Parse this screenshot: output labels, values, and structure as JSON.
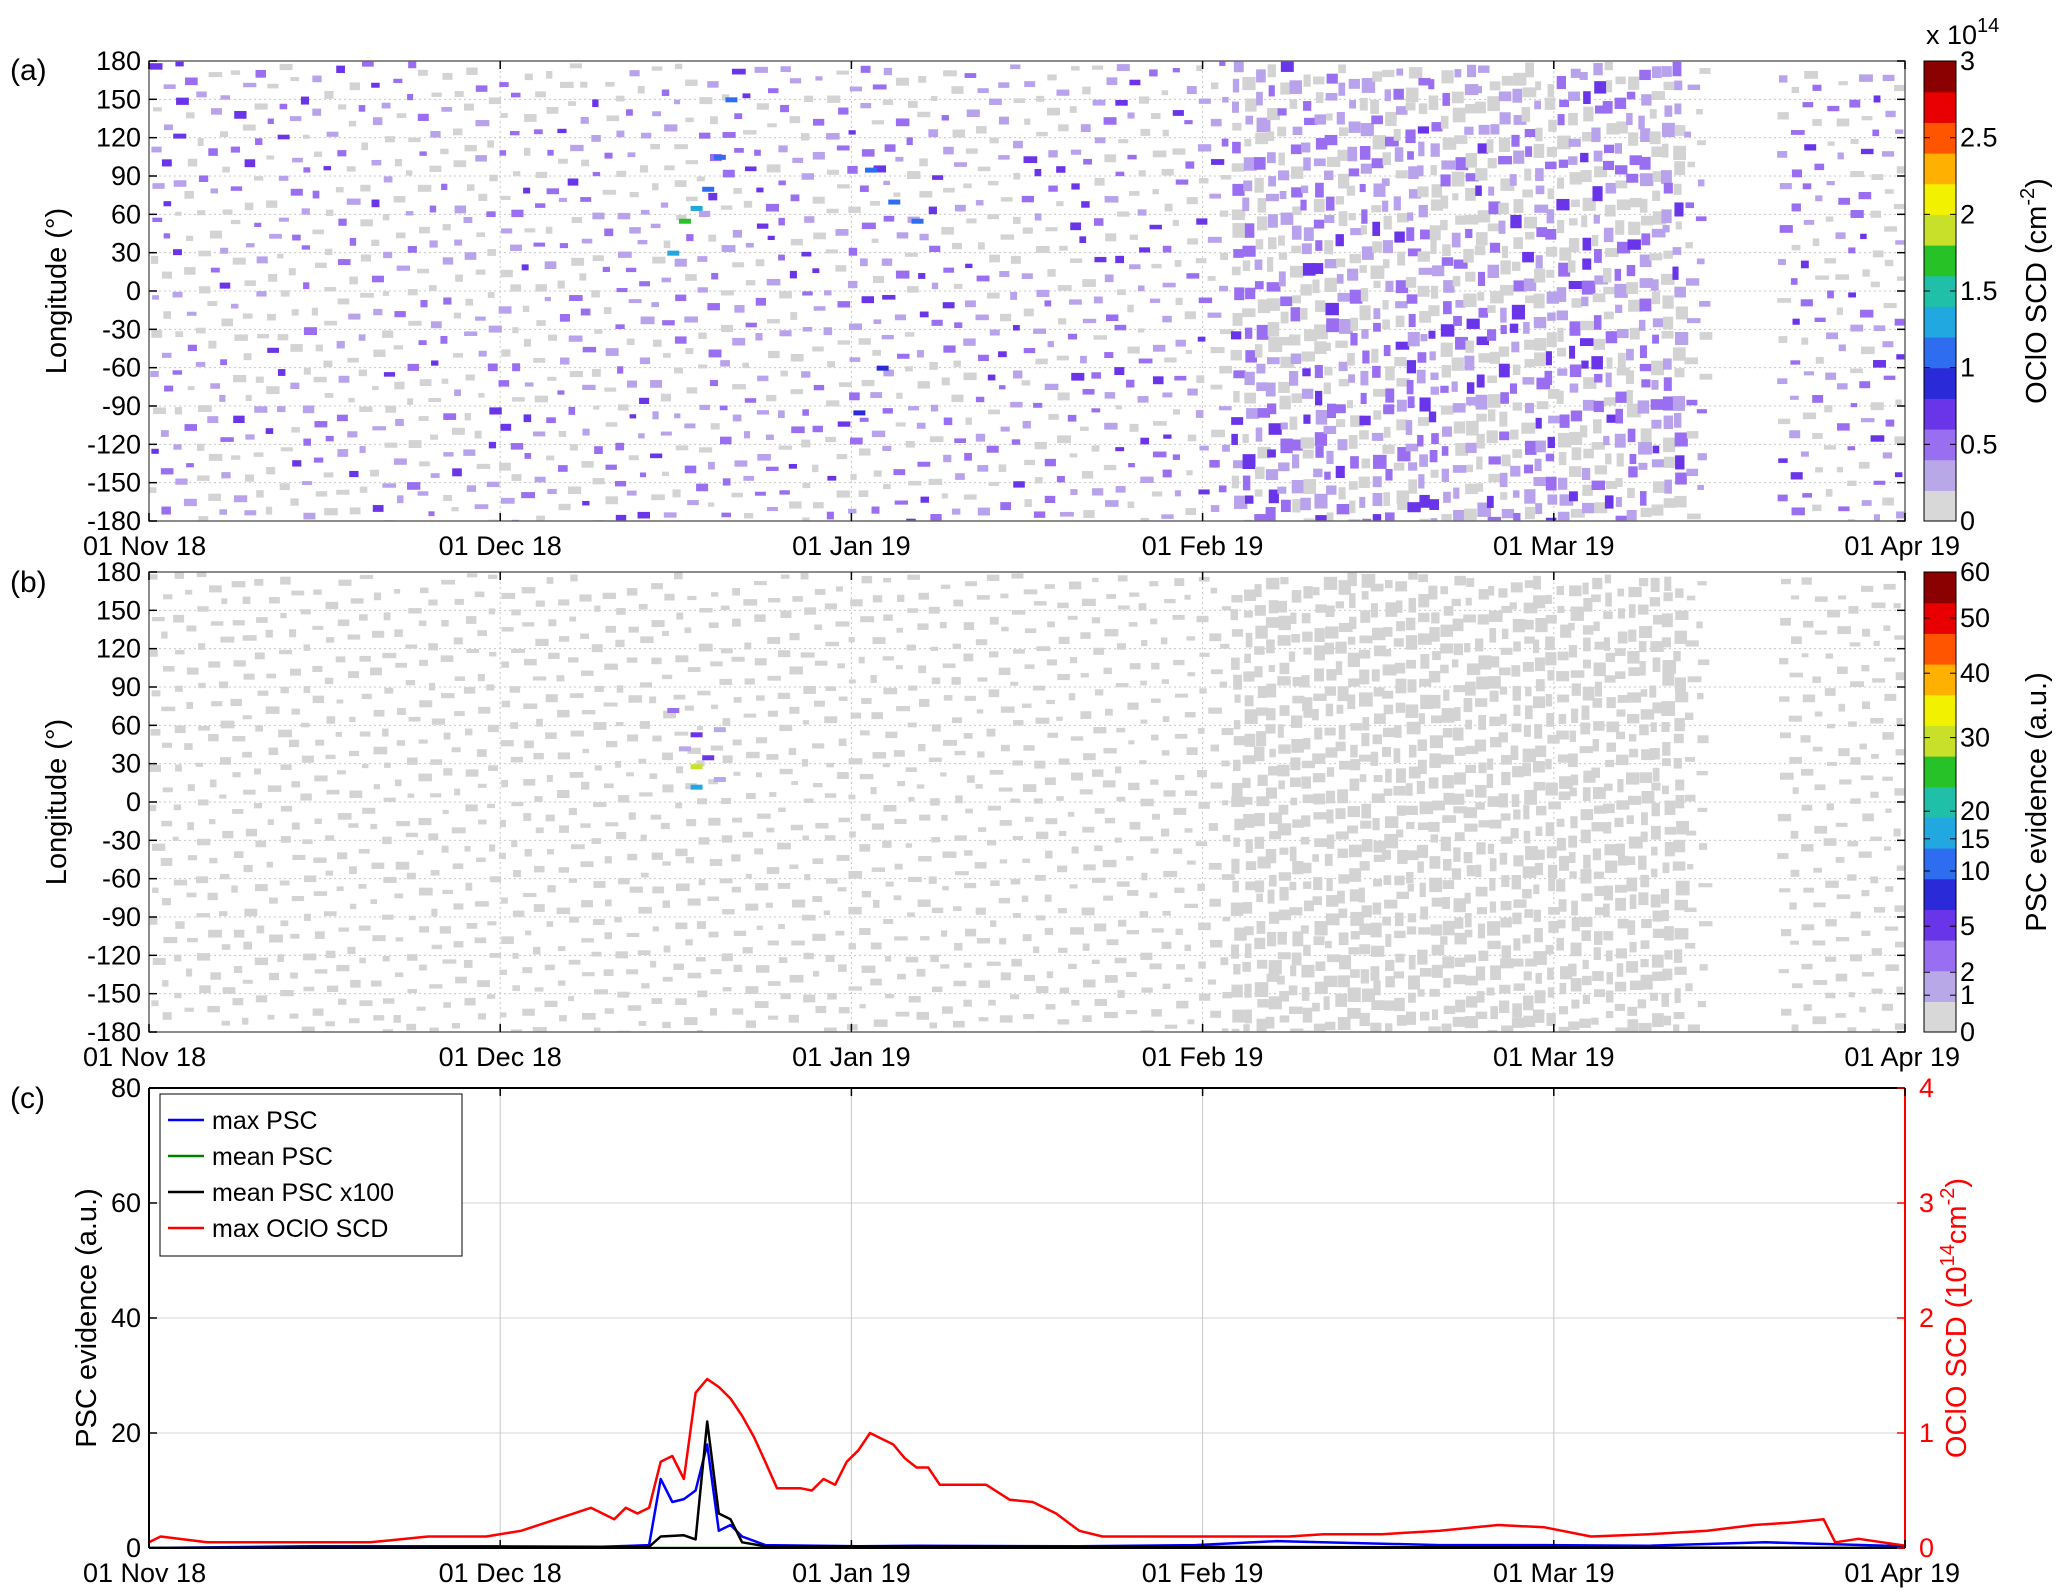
{
  "chart_data": [
    {
      "type": "heatmap",
      "panel_label": "(a)",
      "ylabel": "Longitude (°)",
      "ylim": [
        -180,
        180
      ],
      "yticks": [
        180,
        150,
        120,
        90,
        60,
        30,
        0,
        -30,
        -60,
        -90,
        -120,
        -150,
        -180
      ],
      "xlim": [
        "2018-11-01",
        "2019-04-01"
      ],
      "xticks": [
        "01 Nov 18",
        "01 Dec 18",
        "01 Jan 19",
        "01 Feb 19",
        "01 Mar 19",
        "01 Apr 19"
      ],
      "colorbar": {
        "label": "OClO SCD (cm",
        "label_sup": "-2",
        "label_end": ")",
        "exponent_base": "x 10",
        "exponent": "14",
        "ticks": [
          "0",
          "0.5",
          "1",
          "1.5",
          "2",
          "2.5",
          "3"
        ],
        "range": [
          0,
          3
        ],
        "colormap": [
          "#d8d8d8",
          "#b8a8e8",
          "#9a6ef0",
          "#6a35e8",
          "#2a2ad8",
          "#2e6cf0",
          "#22a8e0",
          "#1fbfa8",
          "#27c227",
          "#c8e02a",
          "#f2f200",
          "#ffb000",
          "#ff5500",
          "#e80000",
          "#8b0000"
        ]
      },
      "grid": true,
      "notable_values": [
        {
          "date": "2018-12-16",
          "lon": 30,
          "value": 1.3
        },
        {
          "date": "2018-12-17",
          "lon": 55,
          "value": 1.6
        },
        {
          "date": "2018-12-18",
          "lon": 65,
          "value": 1.4
        },
        {
          "date": "2018-12-19",
          "lon": 80,
          "value": 1.1
        },
        {
          "date": "2018-12-20",
          "lon": 105,
          "value": 1.0
        },
        {
          "date": "2018-12-21",
          "lon": 150,
          "value": 1.1
        },
        {
          "date": "2019-01-02",
          "lon": 95,
          "value": 1.1
        },
        {
          "date": "2019-01-04",
          "lon": 70,
          "value": 1.2
        },
        {
          "date": "2019-01-06",
          "lon": 55,
          "value": 1.0
        },
        {
          "date": "2019-01-01",
          "lon": -95,
          "value": 0.9
        },
        {
          "date": "2019-01-03",
          "lon": -60,
          "value": 0.9
        }
      ]
    },
    {
      "type": "heatmap",
      "panel_label": "(b)",
      "ylabel": "Longitude (°)",
      "ylim": [
        -180,
        180
      ],
      "yticks": [
        180,
        150,
        120,
        90,
        60,
        30,
        0,
        -30,
        -60,
        -90,
        -120,
        -150,
        -180
      ],
      "xlim": [
        "2018-11-01",
        "2019-04-01"
      ],
      "xticks": [
        "01 Nov 18",
        "01 Dec 18",
        "01 Jan 19",
        "01 Feb 19",
        "01 Mar 19",
        "01 Apr 19"
      ],
      "colorbar": {
        "label": "PSC evidence (a.u.)",
        "ticks": [
          "0",
          "1",
          "2",
          "5",
          "10",
          "15",
          "20",
          "30",
          "40",
          "50",
          "60"
        ],
        "range": [
          0,
          60
        ],
        "colormap": [
          "#d8d8d8",
          "#b8a8e8",
          "#9a6ef0",
          "#6a35e8",
          "#2a2ad8",
          "#2e6cf0",
          "#22a8e0",
          "#1fbfa8",
          "#27c227",
          "#c8e02a",
          "#f2f200",
          "#ffb000",
          "#ff5500",
          "#e80000",
          "#8b0000"
        ]
      },
      "grid": true,
      "notable_values": [
        {
          "date": "2018-12-16",
          "lon": 72,
          "value": 3
        },
        {
          "date": "2018-12-17",
          "lon": 42,
          "value": 2
        },
        {
          "date": "2018-12-18",
          "lon": 53,
          "value": 5
        },
        {
          "date": "2018-12-18",
          "lon": 28,
          "value": 12
        },
        {
          "date": "2018-12-18",
          "lon": 12,
          "value": 8
        },
        {
          "date": "2018-12-19",
          "lon": 35,
          "value": 4
        },
        {
          "date": "2018-12-20",
          "lon": 57,
          "value": 2
        },
        {
          "date": "2018-12-20",
          "lon": 18,
          "value": 2
        }
      ]
    },
    {
      "type": "line",
      "panel_label": "(c)",
      "ylabel": "PSC evidence (a.u.)",
      "ylim": [
        0,
        80
      ],
      "yticks": [
        0,
        20,
        40,
        60,
        80
      ],
      "y2label": "OClO SCD (10",
      "y2label_sup1": "14",
      "y2label_mid": "cm",
      "y2label_sup2": "-2",
      "y2label_end": ")",
      "y2lim": [
        0,
        4
      ],
      "y2ticks": [
        0,
        1,
        2,
        3,
        4
      ],
      "xlim": [
        "2018-11-01",
        "2019-04-01"
      ],
      "xticks": [
        "01 Nov 18",
        "01 Dec 18",
        "01 Jan 19",
        "01 Feb 19",
        "01 Mar 19",
        "01 Apr 19"
      ],
      "grid": true,
      "legend": "top-left",
      "series": [
        {
          "name": "max PSC",
          "color": "#0000ff",
          "axis": "left",
          "x": [
            "2018-11-01",
            "2018-11-15",
            "2018-12-01",
            "2018-12-10",
            "2018-12-14",
            "2018-12-15",
            "2018-12-16",
            "2018-12-17",
            "2018-12-18",
            "2018-12-19",
            "2018-12-20",
            "2018-12-21",
            "2018-12-22",
            "2018-12-24",
            "2019-01-01",
            "2019-01-06",
            "2019-01-20",
            "2019-01-30",
            "2019-02-06",
            "2019-02-20",
            "2019-03-01",
            "2019-03-10",
            "2019-03-20",
            "2019-04-01"
          ],
          "y": [
            0,
            0.3,
            0.3,
            0.2,
            0.5,
            12,
            8,
            8.5,
            10,
            18,
            3,
            4,
            2,
            0.5,
            0.3,
            0.4,
            0.3,
            0.5,
            1.2,
            0.5,
            0.5,
            0.4,
            1.0,
            0.3
          ]
        },
        {
          "name": "mean PSC",
          "color": "#008000",
          "axis": "left",
          "x": [
            "2018-11-01",
            "2019-04-01"
          ],
          "y": [
            0,
            0
          ]
        },
        {
          "name": "mean PSC x100",
          "color": "#000000",
          "axis": "left",
          "x": [
            "2018-11-01",
            "2018-12-14",
            "2018-12-15",
            "2018-12-17",
            "2018-12-18",
            "2018-12-19",
            "2018-12-20",
            "2018-12-21",
            "2018-12-22",
            "2018-12-24",
            "2019-04-01"
          ],
          "y": [
            0,
            0.2,
            2,
            2.2,
            1.5,
            22,
            6,
            5,
            1,
            0.3,
            0
          ]
        },
        {
          "name": "max OClO SCD",
          "color": "#ff0000",
          "axis": "right",
          "x": [
            "2018-11-01",
            "2018-11-02",
            "2018-11-06",
            "2018-11-10",
            "2018-11-15",
            "2018-11-20",
            "2018-11-25",
            "2018-11-30",
            "2018-12-03",
            "2018-12-06",
            "2018-12-09",
            "2018-12-11",
            "2018-12-12",
            "2018-12-13",
            "2018-12-14",
            "2018-12-15",
            "2018-12-16",
            "2018-12-17",
            "2018-12-18",
            "2018-12-19",
            "2018-12-20",
            "2018-12-21",
            "2018-12-22",
            "2018-12-23",
            "2018-12-24",
            "2018-12-25",
            "2018-12-26",
            "2018-12-27",
            "2018-12-28",
            "2018-12-29",
            "2018-12-30",
            "2018-12-31",
            "2019-01-01",
            "2019-01-02",
            "2019-01-03",
            "2019-01-04",
            "2019-01-05",
            "2019-01-06",
            "2019-01-07",
            "2019-01-08",
            "2019-01-10",
            "2019-01-12",
            "2019-01-14",
            "2019-01-16",
            "2019-01-18",
            "2019-01-20",
            "2019-01-22",
            "2019-01-24",
            "2019-01-26",
            "2019-01-28",
            "2019-02-01",
            "2019-02-07",
            "2019-02-10",
            "2019-02-15",
            "2019-02-20",
            "2019-02-25",
            "2019-03-01",
            "2019-03-05",
            "2019-03-10",
            "2019-03-15",
            "2019-03-19",
            "2019-03-22",
            "2019-03-25",
            "2019-03-26",
            "2019-03-28",
            "2019-04-01"
          ],
          "y": [
            0.05,
            0.1,
            0.05,
            0.05,
            0.05,
            0.05,
            0.1,
            0.1,
            0.15,
            0.25,
            0.35,
            0.25,
            0.35,
            0.3,
            0.35,
            0.75,
            0.8,
            0.6,
            1.35,
            1.47,
            1.4,
            1.3,
            1.15,
            0.97,
            0.75,
            0.52,
            0.52,
            0.52,
            0.5,
            0.6,
            0.55,
            0.75,
            0.85,
            1.0,
            0.95,
            0.9,
            0.78,
            0.7,
            0.7,
            0.55,
            0.55,
            0.55,
            0.42,
            0.4,
            0.3,
            0.15,
            0.1,
            0.1,
            0.1,
            0.1,
            0.1,
            0.1,
            0.12,
            0.12,
            0.15,
            0.2,
            0.18,
            0.1,
            0.12,
            0.15,
            0.2,
            0.22,
            0.25,
            0.05,
            0.08,
            0.02
          ]
        }
      ]
    }
  ]
}
